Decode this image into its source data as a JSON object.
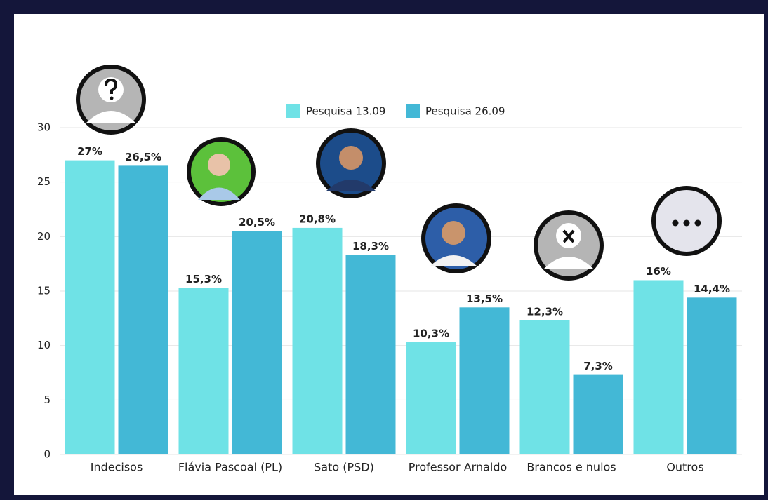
{
  "chart_data": {
    "type": "bar",
    "categories": [
      "Indecisos",
      "Flávia Pascoal (PL)",
      "Sato (PSD)",
      "Professor Arnaldo",
      "Brancos e nulos",
      "Outros"
    ],
    "series": [
      {
        "name": "Pesquisa 13.09",
        "color": "#6fe2e6",
        "values": [
          27,
          15.3,
          20.8,
          10.3,
          12.3,
          16
        ],
        "value_labels": [
          "27%",
          "15,3%",
          "20,8%",
          "10,3%",
          "12,3%",
          "16%"
        ]
      },
      {
        "name": "Pesquisa 26.09",
        "color": "#43b8d6",
        "values": [
          26.5,
          20.5,
          18.3,
          13.5,
          7.3,
          14.4
        ],
        "value_labels": [
          "26,5%",
          "20,5%",
          "18,3%",
          "13,5%",
          "7,3%",
          "14,4%"
        ]
      }
    ],
    "ylim": [
      0,
      30
    ],
    "yticks": [
      0,
      5,
      10,
      15,
      20,
      25,
      30
    ],
    "grid": true
  }
}
